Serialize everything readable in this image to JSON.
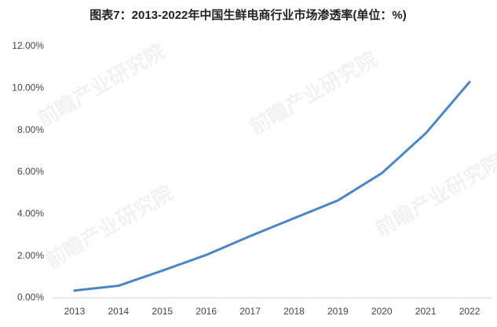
{
  "chart_data": {
    "type": "line",
    "title": "图表7：2013-2022年中国生鲜电商行业市场渗透率(单位：%)",
    "watermark": "前瞻产业研究院",
    "categories": [
      "2013",
      "2014",
      "2015",
      "2016",
      "2017",
      "2018",
      "2019",
      "2020",
      "2021",
      "2022"
    ],
    "series": [
      {
        "name": "市场渗透率",
        "color": "#4a86c6",
        "values": [
          0.35,
          0.58,
          1.3,
          2.05,
          2.95,
          3.8,
          4.65,
          5.95,
          7.85,
          10.3
        ]
      }
    ],
    "ylim": [
      0,
      12
    ],
    "yticks": [
      {
        "value": 0,
        "label": "0.00%"
      },
      {
        "value": 2,
        "label": "2.00%"
      },
      {
        "value": 4,
        "label": "4.00%"
      },
      {
        "value": 6,
        "label": "6.00%"
      },
      {
        "value": 8,
        "label": "8.00%"
      },
      {
        "value": 10,
        "label": "10.00%"
      },
      {
        "value": 12,
        "label": "12.00%"
      }
    ],
    "grid": false
  }
}
